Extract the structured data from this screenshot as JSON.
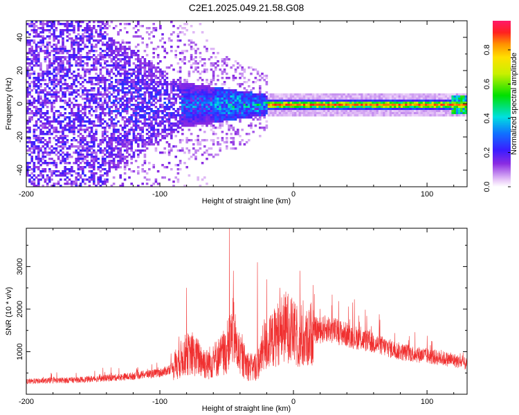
{
  "title": "C2E1.2025.049.21.58.G08",
  "chart_data": [
    {
      "type": "heatmap",
      "xlabel": "Height of straight line (km)",
      "ylabel": "Frequency (Hz)",
      "xlim": [
        -200,
        130
      ],
      "ylim": [
        -50,
        50
      ],
      "x_ticks": [
        -200,
        -100,
        0,
        100
      ],
      "y_ticks": [
        -40,
        -20,
        0,
        20,
        40
      ],
      "colorbar": {
        "label": "Normalized spectral amplitude",
        "range": [
          0.0,
          0.97
        ],
        "ticks": [
          0.0,
          0.2,
          0.4,
          0.6,
          0.8
        ],
        "colormap": "rainbow-purple-to-red"
      }
    },
    {
      "type": "line",
      "xlabel": "Height of straight line (km)",
      "ylabel": "SNR (10 * v/v)",
      "xlim": [
        -200,
        130
      ],
      "ylim": [
        0,
        3900
      ],
      "x_ticks": [
        -200,
        -100,
        0,
        100
      ],
      "y_ticks": [
        1000,
        2000,
        3000
      ],
      "line_color": "#f03030",
      "series": [
        {
          "x": [
            -200,
            -190,
            -180,
            -170,
            -160,
            -150,
            -140,
            -130,
            -120,
            -110,
            -100,
            -95,
            -90,
            -85,
            -80,
            -75,
            -70,
            -65,
            -60,
            -55,
            -50,
            -47,
            -45,
            -42,
            -40,
            -35,
            -30,
            -25,
            -22,
            -20,
            -15,
            -10,
            -5,
            0,
            5,
            10,
            15,
            20,
            25,
            30,
            35,
            40,
            50,
            60,
            70,
            80,
            90,
            100,
            110,
            120,
            130
          ],
          "values": [
            300,
            310,
            320,
            330,
            340,
            360,
            380,
            400,
            430,
            470,
            500,
            550,
            650,
            800,
            950,
            900,
            850,
            700,
            800,
            900,
            1000,
            1300,
            1500,
            1000,
            900,
            700,
            600,
            800,
            1200,
            1100,
            1300,
            1500,
            1600,
            1450,
            1200,
            1300,
            1500,
            1500,
            1550,
            1500,
            1450,
            1400,
            1300,
            1200,
            1100,
            1000,
            950,
            900,
            850,
            800,
            700
          ],
          "peaks": [
            [
              -80,
              2500
            ],
            [
              -48,
              3900
            ],
            [
              -45,
              2900
            ],
            [
              -27,
              3100
            ],
            [
              -20,
              2700
            ],
            [
              -10,
              2500
            ],
            [
              5,
              2900
            ],
            [
              30,
              1700
            ]
          ]
        }
      ]
    }
  ]
}
